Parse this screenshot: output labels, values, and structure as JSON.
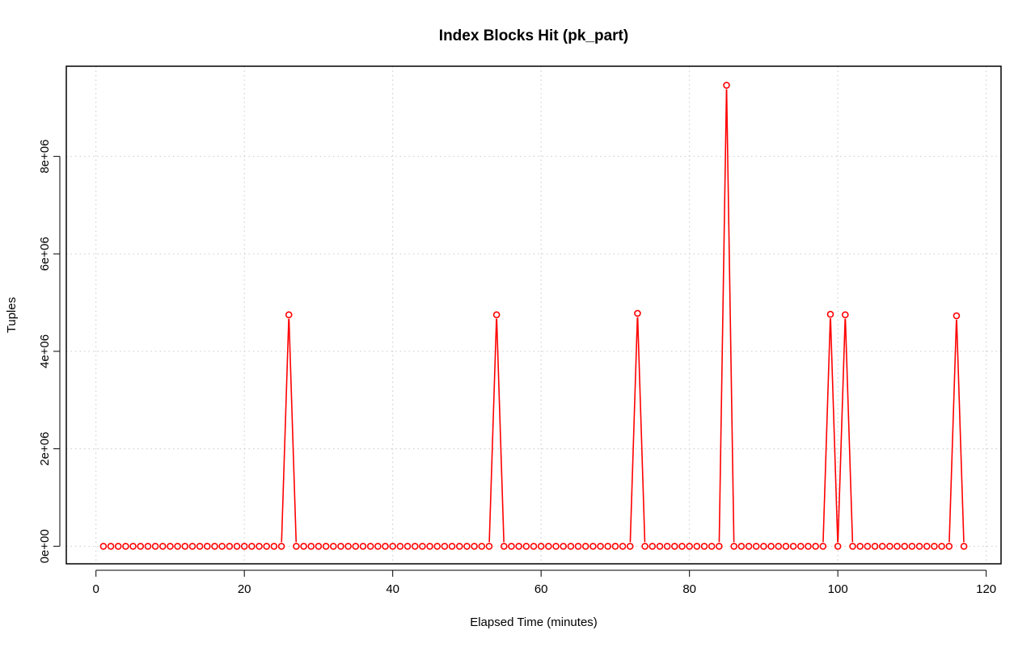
{
  "chart_data": {
    "type": "line",
    "title": "Index Blocks Hit (pk_part)",
    "xlabel": "Elapsed Time (minutes)",
    "ylabel": "Tuples",
    "xlim": [
      -4,
      122
    ],
    "ylim": [
      -360000,
      9850000
    ],
    "xticks": [
      0,
      20,
      40,
      60,
      80,
      100,
      120
    ],
    "xtick_labels": [
      "0",
      "20",
      "40",
      "60",
      "80",
      "100",
      "120"
    ],
    "yticks": [
      0,
      2000000,
      4000000,
      6000000,
      8000000
    ],
    "ytick_labels": [
      "0e+00",
      "2e+06",
      "4e+06",
      "6e+06",
      "8e+06"
    ],
    "grid": true,
    "series": [
      {
        "color": "#ff0000",
        "marker": "open-circle",
        "x": [
          1,
          2,
          3,
          4,
          5,
          6,
          7,
          8,
          9,
          10,
          11,
          12,
          13,
          14,
          15,
          16,
          17,
          18,
          19,
          20,
          21,
          22,
          23,
          24,
          25,
          26,
          27,
          28,
          29,
          30,
          31,
          32,
          33,
          34,
          35,
          36,
          37,
          38,
          39,
          40,
          41,
          42,
          43,
          44,
          45,
          46,
          47,
          48,
          49,
          50,
          51,
          52,
          53,
          54,
          55,
          56,
          57,
          58,
          59,
          60,
          61,
          62,
          63,
          64,
          65,
          66,
          67,
          68,
          69,
          70,
          71,
          72,
          73,
          74,
          75,
          76,
          77,
          78,
          79,
          80,
          81,
          82,
          83,
          84,
          85,
          86,
          87,
          88,
          89,
          90,
          91,
          92,
          93,
          94,
          95,
          96,
          97,
          98,
          99,
          100,
          101,
          102,
          103,
          104,
          105,
          106,
          107,
          108,
          109,
          110,
          111,
          112,
          113,
          114,
          115,
          116,
          117
        ],
        "y": [
          0,
          0,
          0,
          0,
          0,
          0,
          0,
          0,
          0,
          0,
          0,
          0,
          0,
          0,
          0,
          0,
          0,
          0,
          0,
          0,
          0,
          0,
          0,
          0,
          0,
          4750000,
          0,
          0,
          0,
          0,
          0,
          0,
          0,
          0,
          0,
          0,
          0,
          0,
          0,
          0,
          0,
          0,
          0,
          0,
          0,
          0,
          0,
          0,
          0,
          0,
          0,
          0,
          0,
          4750000,
          0,
          0,
          0,
          0,
          0,
          0,
          0,
          0,
          0,
          0,
          0,
          0,
          0,
          0,
          0,
          0,
          0,
          0,
          4780000,
          0,
          0,
          0,
          0,
          0,
          0,
          0,
          0,
          0,
          0,
          0,
          9460000,
          0,
          0,
          0,
          0,
          0,
          0,
          0,
          0,
          0,
          0,
          0,
          0,
          0,
          4760000,
          0,
          4750000,
          0,
          0,
          0,
          0,
          0,
          0,
          0,
          0,
          0,
          0,
          0,
          0,
          0,
          0,
          4730000,
          0
        ]
      }
    ]
  }
}
